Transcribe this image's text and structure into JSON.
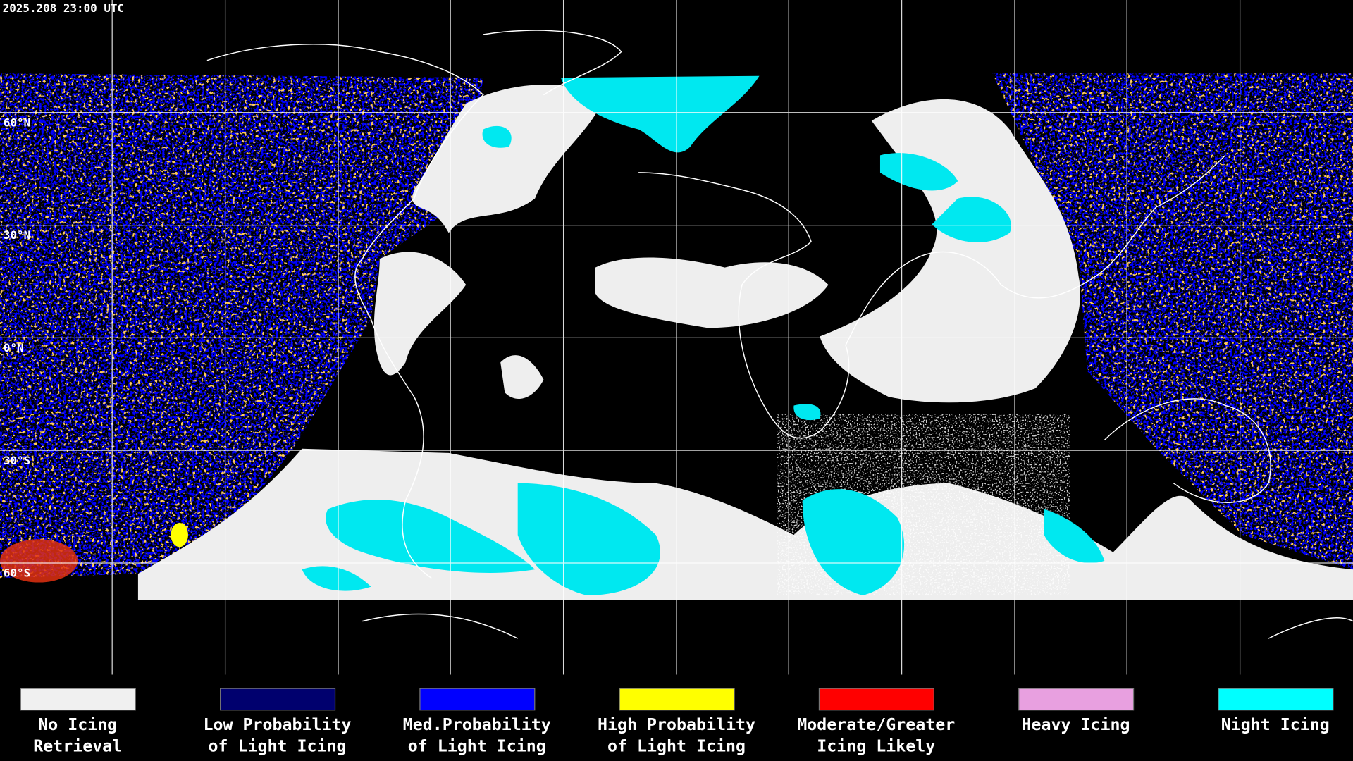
{
  "header": {
    "timestamp": "2025.208 23:00 UTC"
  },
  "latitude_labels": [
    "60°N",
    "30°N",
    "0°N",
    "30°S",
    "60°S"
  ],
  "legend": [
    {
      "color": "#f0f0f0",
      "lines": [
        "No Icing",
        "Retrieval"
      ]
    },
    {
      "color": "#00006e",
      "lines": [
        "Low Probability",
        "of Light Icing"
      ]
    },
    {
      "color": "#0000ff",
      "lines": [
        "Med.Probability",
        "of Light Icing"
      ]
    },
    {
      "color": "#ffff00",
      "lines": [
        "High Probability",
        "of Light Icing"
      ]
    },
    {
      "color": "#ff0000",
      "lines": [
        "Moderate/Greater",
        "Icing Likely"
      ]
    },
    {
      "color": "#e8a0e0",
      "lines": [
        "Heavy Icing"
      ]
    },
    {
      "color": "#00ffff",
      "lines": [
        "Night Icing"
      ]
    }
  ]
}
